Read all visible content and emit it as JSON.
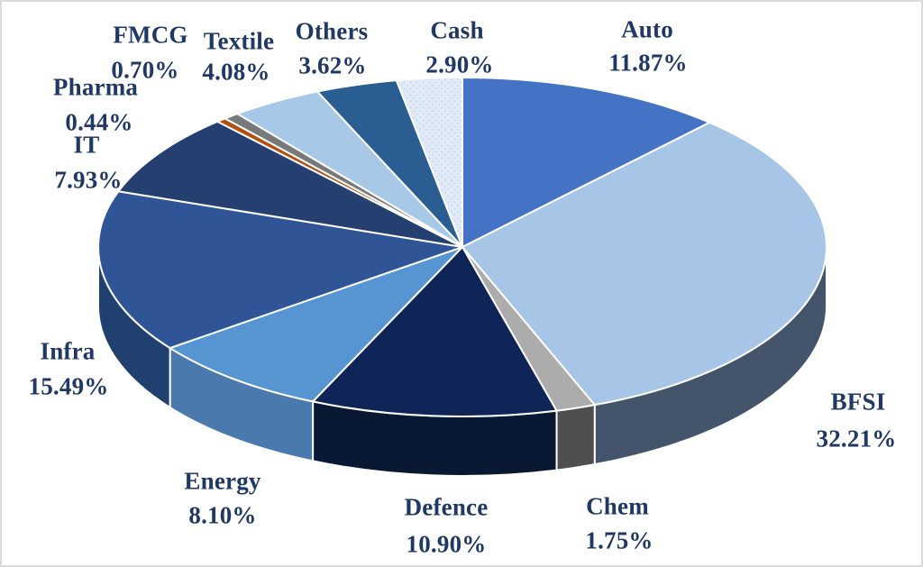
{
  "chart_data": {
    "type": "pie",
    "style": "3d-exploded-none",
    "title": "",
    "unit": "%",
    "direction": "clockwise",
    "start_angle_deg": 0,
    "legend": "none",
    "labels_position": "outside",
    "text_color": "#1F3864",
    "background_color": "#ffffff",
    "slices": [
      {
        "id": "auto",
        "label": "Auto",
        "value": 11.87,
        "display": "11.87%",
        "color": "#4472C4",
        "side_color": "#2F5390",
        "pattern": "solid"
      },
      {
        "id": "bfsi",
        "label": "BFSI",
        "value": 32.21,
        "display": "32.21%",
        "color": "#A7C6E7",
        "side_color": "#44546A",
        "pattern": "solid"
      },
      {
        "id": "chem",
        "label": "Chem",
        "value": 1.75,
        "display": "1.75%",
        "color": "#ACACAC",
        "side_color": "#4F4F4F",
        "pattern": "solid"
      },
      {
        "id": "defence",
        "label": "Defence",
        "value": 10.9,
        "display": "10.90%",
        "color": "#0F2557",
        "side_color": "#091833",
        "pattern": "solid"
      },
      {
        "id": "energy",
        "label": "Energy",
        "value": 8.1,
        "display": "8.10%",
        "color": "#5794D2",
        "side_color": "#4A79AD",
        "pattern": "solid"
      },
      {
        "id": "infra",
        "label": "Infra",
        "value": 15.49,
        "display": "15.49%",
        "color": "#2F5597",
        "side_color": "#20406F",
        "pattern": "solid"
      },
      {
        "id": "it",
        "label": "IT",
        "value": 7.93,
        "display": "7.93%",
        "color": "#253F70",
        "side_color": "#182B4E",
        "pattern": "solid"
      },
      {
        "id": "pharma",
        "label": "Pharma",
        "value": 0.44,
        "display": "0.44%",
        "color": "#B4500F",
        "side_color": "#83390A",
        "pattern": "solid"
      },
      {
        "id": "fmcg",
        "label": "FMCG",
        "value": 0.7,
        "display": "0.70%",
        "color": "#77797B",
        "side_color": "#55565A",
        "pattern": "solid"
      },
      {
        "id": "textile",
        "label": "Textile",
        "value": 4.08,
        "display": "4.08%",
        "color": "#A8C8E8",
        "side_color": "#7A97B5",
        "pattern": "solid"
      },
      {
        "id": "others",
        "label": "Others",
        "value": 3.62,
        "display": "3.62%",
        "color": "#2A5E93",
        "side_color": "#1C4268",
        "pattern": "solid"
      },
      {
        "id": "cash",
        "label": "Cash",
        "value": 2.9,
        "display": "2.90%",
        "color": "#E0EBF7",
        "side_color": "#B4C8DE",
        "pattern": "dots"
      }
    ]
  }
}
